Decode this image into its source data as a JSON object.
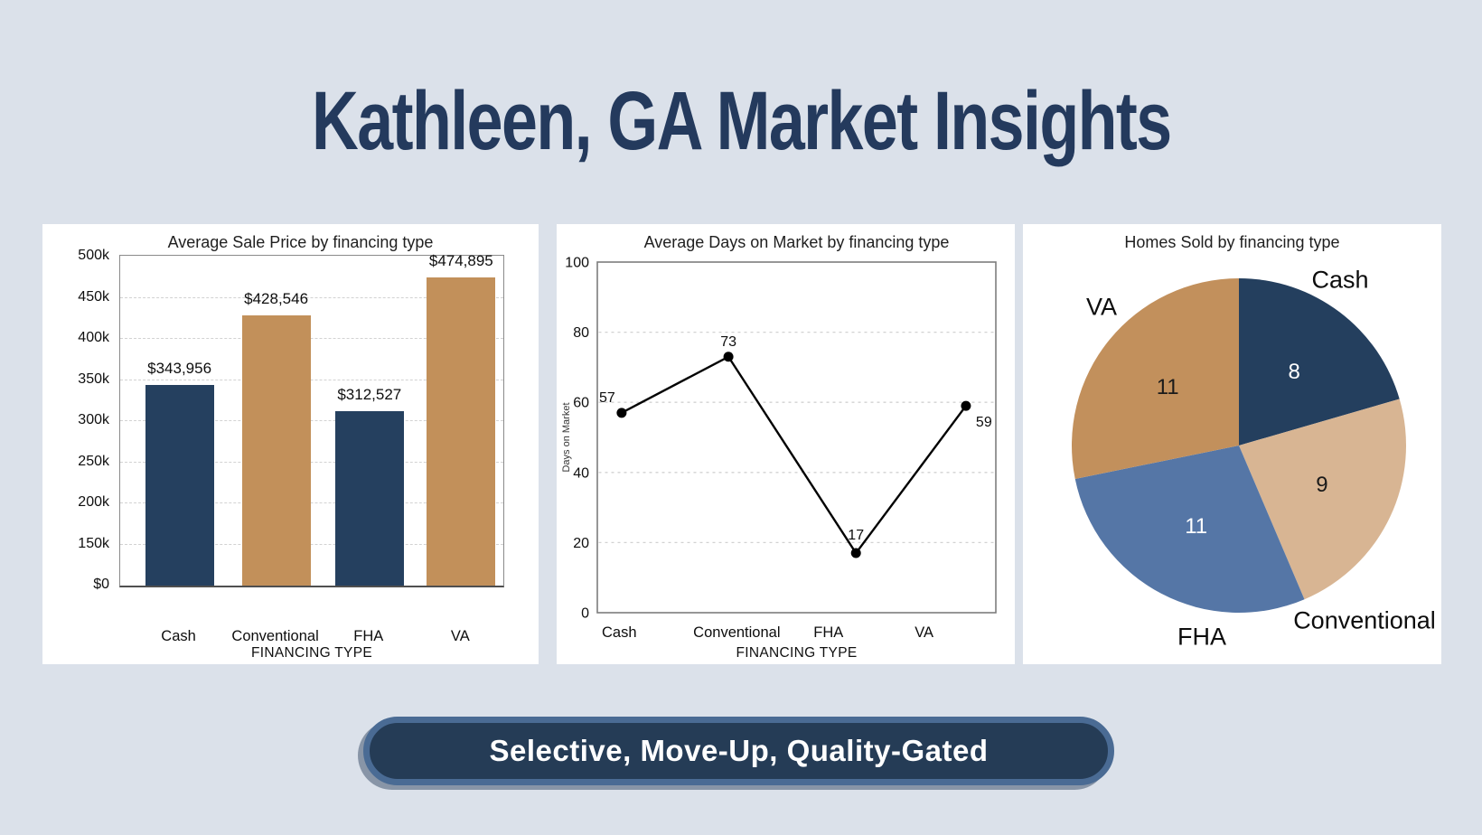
{
  "page": {
    "title": "Kathleen, GA Market Insights",
    "badge": "Selective, Move-Up, Quality-Gated",
    "background_color": "#dbe1ea",
    "title_color": "#243a5d"
  },
  "colors": {
    "bar_navy": "#25405f",
    "bar_tan": "#c2905a",
    "pill_fill": "#253c56",
    "pill_border": "#4a6b94",
    "card_background": "#ffffff"
  },
  "chart_data": [
    {
      "type": "bar",
      "title": "Average Sale Price by financing type",
      "xlabel": "FINANCING TYPE",
      "categories": [
        "Cash",
        "Conventional",
        "FHA",
        "VA"
      ],
      "values": [
        343956,
        428546,
        312527,
        474895
      ],
      "value_labels": [
        "$343,956",
        "$428,546",
        "$312,527",
        "$474,895"
      ],
      "bar_colors": [
        "#25405f",
        "#c2905a",
        "#25405f",
        "#c2905a"
      ],
      "ytick_values": [
        0,
        150000,
        200000,
        250000,
        300000,
        350000,
        400000,
        450000,
        500000
      ],
      "ytick_labels": [
        "$0",
        "150k",
        "200k",
        "250k",
        "300k",
        "350k",
        "400k",
        "450k",
        "500k"
      ],
      "grid": true,
      "legend": "none"
    },
    {
      "type": "line",
      "title": "Average Days on Market by financing type",
      "xlabel": "FINANCING TYPE",
      "ylabel": "Days on Market",
      "categories": [
        "Cash",
        "Conventional",
        "FHA",
        "VA"
      ],
      "values": [
        57,
        73,
        17,
        59
      ],
      "value_labels": [
        "57",
        "73",
        "17",
        "59"
      ],
      "ylim": [
        0,
        100
      ],
      "yticks": [
        0,
        20,
        40,
        60,
        80,
        100
      ],
      "line_color": "#000000",
      "marker": "circle",
      "grid": true,
      "legend": "none"
    },
    {
      "type": "pie",
      "title": "Homes Sold by financing type",
      "categories": [
        "Cash",
        "Conventional",
        "FHA",
        "VA"
      ],
      "values": [
        8,
        9,
        11,
        11
      ],
      "value_labels": [
        "8",
        "9",
        "11",
        "11"
      ],
      "slice_colors": [
        "#243f5e",
        "#d8b593",
        "#5576a6",
        "#c2905c"
      ],
      "value_text_colors": [
        "#ffffff",
        "#1a1a1a",
        "#ffffff",
        "#1a1a1a"
      ],
      "start_angle": "top",
      "direction": "clockwise",
      "legend": "none"
    }
  ]
}
